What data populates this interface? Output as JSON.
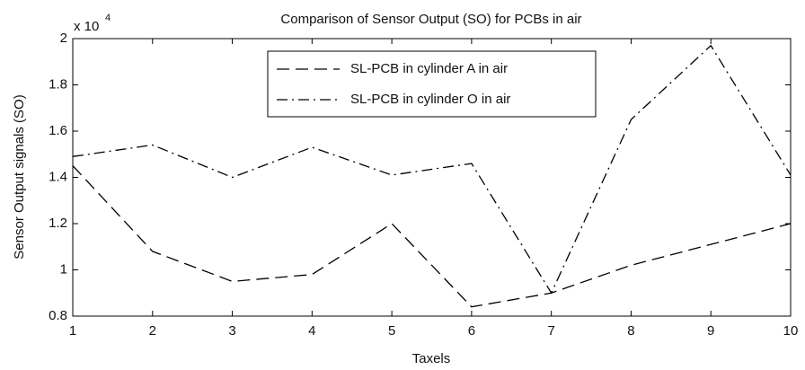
{
  "chart_data": {
    "type": "line",
    "title": "Comparison of Sensor Output (SO) for PCBs in air",
    "xlabel": "Taxels",
    "ylabel": "Sensor Output signals (SO)",
    "y_scale_label": "x 10",
    "y_scale_exponent": "4",
    "x": [
      1,
      2,
      3,
      4,
      5,
      6,
      7,
      8,
      9,
      10
    ],
    "series": [
      {
        "name": "SL-PCB in cylinder A in air",
        "color": "#000000",
        "style": "dashed",
        "values": [
          1.45,
          1.08,
          0.95,
          0.98,
          1.2,
          0.84,
          0.9,
          1.02,
          1.11,
          1.2
        ]
      },
      {
        "name": "SL-PCB in cylinder O in air",
        "color": "#000000",
        "style": "dashdot",
        "values": [
          1.49,
          1.54,
          1.4,
          1.53,
          1.41,
          1.46,
          0.9,
          1.65,
          1.97,
          1.41
        ]
      }
    ],
    "xlim": [
      1,
      10
    ],
    "xticks": [
      1,
      2,
      3,
      4,
      5,
      6,
      7,
      8,
      9,
      10
    ],
    "ylim": [
      0.8,
      2
    ],
    "yticks": [
      0.8,
      1,
      1.2,
      1.4,
      1.6,
      1.8,
      2
    ],
    "grid": false,
    "legend": "top"
  }
}
